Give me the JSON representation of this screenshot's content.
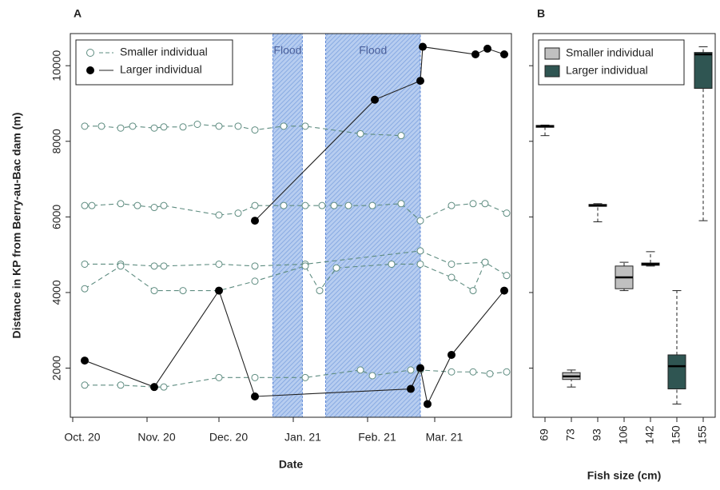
{
  "chart_data": [
    {
      "type": "line",
      "panel": "A",
      "xlabel": "Date",
      "ylabel": "Distance in KP from Berry-au-Bac dam (m)",
      "xlim": [
        -1,
        183
      ],
      "ylim": [
        700,
        10850
      ],
      "xticks": [
        {
          "value": 0,
          "label": "Oct. 20"
        },
        {
          "value": 31,
          "label": "Nov. 20"
        },
        {
          "value": 61,
          "label": "Dec. 20"
        },
        {
          "value": 92,
          "label": "Jan. 21"
        },
        {
          "value": 123,
          "label": "Feb. 21"
        },
        {
          "value": 151,
          "label": "Mar. 21"
        }
      ],
      "yticks": [
        2000,
        4000,
        6000,
        8000,
        10000
      ],
      "floods": [
        {
          "label": "Flood",
          "start": 83.5,
          "end": 95.8
        },
        {
          "label": "Flood",
          "start": 105.5,
          "end": 145
        }
      ],
      "legend": "top-left",
      "series": [
        {
          "name": "Smaller individual",
          "color": "#5e8c80",
          "style": "dashed",
          "marker": "open",
          "tracks": [
            {
              "x": [
                5,
                12,
                20,
                25,
                34,
                38,
                46,
                52,
                61,
                69,
                76,
                88,
                97,
                120,
                137
              ],
              "values": [
                8400,
                8400,
                8350,
                8400,
                8350,
                8380,
                8380,
                8450,
                8400,
                8400,
                8300,
                8400,
                8400,
                8200,
                8150
              ]
            },
            {
              "x": [
                5,
                8,
                20,
                27,
                34,
                38,
                61,
                69,
                76,
                88,
                97,
                104,
                109,
                115,
                125,
                137,
                145,
                158,
                167,
                172,
                181
              ],
              "values": [
                6300,
                6300,
                6350,
                6300,
                6250,
                6300,
                6050,
                6100,
                6300,
                6300,
                6300,
                6300,
                6300,
                6300,
                6300,
                6350,
                5900,
                6300,
                6350,
                6350,
                6100
              ]
            },
            {
              "x": [
                5,
                20,
                34,
                38,
                61,
                76,
                97,
                145,
                158,
                172,
                181
              ],
              "values": [
                4750,
                4750,
                4700,
                4700,
                4750,
                4700,
                4750,
                5100,
                4750,
                4800,
                4450
              ]
            },
            {
              "x": [
                5,
                20,
                34,
                46,
                61,
                76,
                97,
                103,
                110,
                133,
                145,
                158,
                167,
                172
              ],
              "values": [
                4100,
                4700,
                4050,
                4050,
                4050,
                4300,
                4700,
                4050,
                4650,
                4750,
                4750,
                4400,
                4050,
                4800
              ]
            },
            {
              "x": [
                5,
                20,
                34,
                38,
                61,
                76,
                97,
                120,
                125,
                141,
                145,
                158,
                167,
                174,
                181
              ],
              "values": [
                1550,
                1550,
                1500,
                1500,
                1750,
                1750,
                1750,
                1950,
                1800,
                1950,
                1950,
                1900,
                1900,
                1850,
                1900
              ]
            }
          ]
        },
        {
          "name": "Larger individual",
          "color": "#000000",
          "style": "solid",
          "marker": "filled",
          "tracks": [
            {
              "x": [
                5,
                34,
                61,
                76,
                141,
                145,
                148,
                158,
                180
              ],
              "values": [
                2200,
                1500,
                4050,
                1250,
                1450,
                2000,
                1050,
                2350,
                4050
              ]
            },
            {
              "x": [
                76,
                126,
                145,
                146,
                168,
                173,
                180
              ],
              "values": [
                5900,
                9100,
                9600,
                10500,
                10300,
                10450,
                10300
              ]
            }
          ]
        }
      ]
    },
    {
      "type": "box",
      "panel": "B",
      "xlabel": "Fish size (cm)",
      "ylim": [
        700,
        10850
      ],
      "yticks": [
        2000,
        4000,
        6000,
        8000,
        10000
      ],
      "legend": "top-left",
      "categories": [
        "69",
        "73",
        "93",
        "106",
        "142",
        "150",
        "155"
      ],
      "series": [
        {
          "name": "Smaller individual",
          "color": "#c0c0c0",
          "boxes": [
            [
              8150,
              8370,
              8400,
              8420,
              8430
            ],
            [
              1500,
              1700,
              1780,
              1880,
              1950
            ],
            [
              5870,
              6280,
              6300,
              6330,
              6350
            ],
            [
              4050,
              4100,
              4400,
              4700,
              4800
            ],
            [
              4700,
              4720,
              4750,
              4780,
              5080
            ],
            null,
            null
          ]
        },
        {
          "name": "Larger individual",
          "color": "#2f5552",
          "boxes": [
            null,
            null,
            null,
            null,
            null,
            [
              1050,
              1450,
              2050,
              2350,
              4050
            ],
            [
              5900,
              9400,
              10300,
              10350,
              10500
            ]
          ]
        }
      ]
    }
  ]
}
